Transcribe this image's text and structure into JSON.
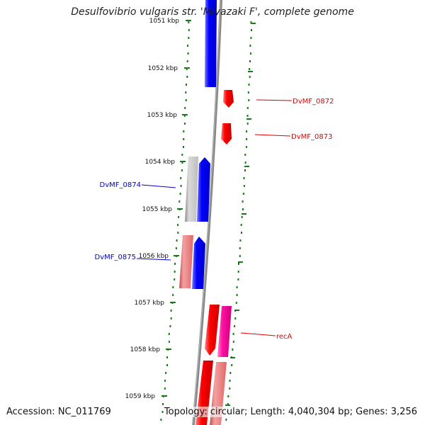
{
  "header": {
    "title": "Desulfovibrio vulgaris str. 'Miyazaki F', complete genome"
  },
  "footer": {
    "accession": "Accession: NC_011769",
    "topology": "Topology: circular; Length: 4,040,304 bp; Genes: 3,256"
  },
  "map": {
    "ticks": [
      {
        "label": "1051 kbp"
      },
      {
        "label": "1052 kbp"
      },
      {
        "label": "1053 kbp"
      },
      {
        "label": "1054 kbp"
      },
      {
        "label": "1055 kbp"
      },
      {
        "label": "1056 kbp"
      },
      {
        "label": "1057 kbp"
      },
      {
        "label": "1058 kbp"
      },
      {
        "label": "1059 kbp"
      }
    ],
    "gene_labels": [
      {
        "text": "DvMF_0872",
        "color": "#e00000"
      },
      {
        "text": "DvMF_0873",
        "color": "#e00000"
      },
      {
        "text": "DvMF_0874",
        "color": "#0000cc"
      },
      {
        "text": "DvMF_0875",
        "color": "#0000cc"
      },
      {
        "text": "recA",
        "color": "#e00000"
      }
    ],
    "colors": {
      "forward_cds": "#ff0000",
      "reverse_cds": "#0000ff",
      "pseudo": "#c0c0c0",
      "pink": "#ff1aa0",
      "salmon": "#f08080",
      "backbone": "#808080",
      "gc_dots": "#1a7a1a"
    }
  }
}
